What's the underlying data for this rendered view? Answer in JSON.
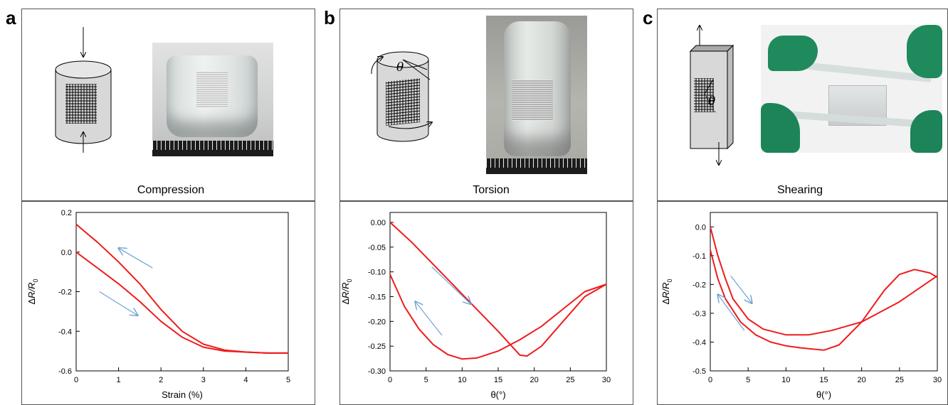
{
  "panels": [
    {
      "letter": "a",
      "caption": "Compression"
    },
    {
      "letter": "b",
      "caption": "Torsion",
      "diagram_symbol": "θ"
    },
    {
      "letter": "c",
      "caption": "Shearing",
      "diagram_symbol": "θ"
    }
  ],
  "colors": {
    "curve": "#ee1c1c",
    "arrow": "#6fa3d3",
    "frame": "#555555"
  },
  "icons": [
    "down-arrow-icon",
    "up-arrow-icon",
    "rotation-arrow-icon",
    "cylinder-sample-icon",
    "slab-sample-icon"
  ],
  "chart_data": [
    {
      "type": "line",
      "xlabel": "Strain (%)",
      "ylabel": "ΔR/R0",
      "xlim": [
        0,
        5
      ],
      "ylim": [
        -0.6,
        0.2
      ],
      "xticks": [
        0,
        1,
        2,
        3,
        4,
        5
      ],
      "yticks": [
        -0.6,
        -0.4,
        -0.2,
        0.0,
        0.2
      ],
      "xtick_labels": [
        "0",
        "1",
        "2",
        "3",
        "4",
        "5"
      ],
      "ytick_labels": [
        "-0.6",
        "-0.4",
        "-0.2",
        "0.0",
        "0.2"
      ],
      "series": [
        {
          "values": [
            [
              0,
              0.0
            ],
            [
              0.5,
              -0.08
            ],
            [
              1,
              -0.16
            ],
            [
              1.5,
              -0.25
            ],
            [
              2,
              -0.35
            ],
            [
              2.5,
              -0.43
            ],
            [
              3,
              -0.48
            ],
            [
              3.5,
              -0.5
            ],
            [
              4,
              -0.505
            ],
            [
              4.5,
              -0.51
            ],
            [
              5,
              -0.51
            ]
          ]
        },
        {
          "values": [
            [
              0,
              0.14
            ],
            [
              0.5,
              0.05
            ],
            [
              1,
              -0.05
            ],
            [
              1.5,
              -0.16
            ],
            [
              2,
              -0.29
            ],
            [
              2.5,
              -0.4
            ],
            [
              3,
              -0.465
            ],
            [
              3.5,
              -0.495
            ],
            [
              4,
              -0.505
            ],
            [
              4.5,
              -0.51
            ],
            [
              5,
              -0.51
            ]
          ]
        }
      ],
      "arrows": [
        {
          "from": [
            1.8,
            -0.08
          ],
          "to": [
            1.0,
            0.02
          ]
        },
        {
          "from": [
            0.55,
            -0.2
          ],
          "to": [
            1.45,
            -0.32
          ]
        }
      ]
    },
    {
      "type": "line",
      "xlabel": "θ(°)",
      "ylabel": "ΔR/R0",
      "xlim": [
        0,
        30
      ],
      "ylim": [
        -0.3,
        0.02
      ],
      "xticks": [
        0,
        5,
        10,
        15,
        20,
        25,
        30
      ],
      "yticks": [
        0.0,
        -0.05,
        -0.1,
        -0.15,
        -0.2,
        -0.25,
        -0.3
      ],
      "xtick_labels": [
        "0",
        "5",
        "10",
        "15",
        "20",
        "25",
        "30"
      ],
      "ytick_labels": [
        "0.00",
        "-0.05",
        "-0.10",
        "-0.15",
        "-0.20",
        "-0.25",
        "-0.30"
      ],
      "series": [
        {
          "values": [
            [
              0,
              0.0
            ],
            [
              3,
              -0.04
            ],
            [
              6,
              -0.085
            ],
            [
              9,
              -0.13
            ],
            [
              12,
              -0.175
            ],
            [
              15,
              -0.22
            ],
            [
              18,
              -0.268
            ],
            [
              19,
              -0.27
            ],
            [
              21,
              -0.25
            ],
            [
              24,
              -0.2
            ],
            [
              27,
              -0.15
            ],
            [
              30,
              -0.125
            ]
          ]
        },
        {
          "values": [
            [
              0,
              -0.105
            ],
            [
              2,
              -0.17
            ],
            [
              4,
              -0.215
            ],
            [
              6,
              -0.247
            ],
            [
              8,
              -0.267
            ],
            [
              10,
              -0.276
            ],
            [
              12,
              -0.274
            ],
            [
              15,
              -0.26
            ],
            [
              18,
              -0.237
            ],
            [
              21,
              -0.21
            ],
            [
              24,
              -0.175
            ],
            [
              27,
              -0.14
            ],
            [
              30,
              -0.125
            ]
          ]
        }
      ],
      "arrows": [
        {
          "from": [
            5.8,
            -0.09
          ],
          "to": [
            11.2,
            -0.165
          ]
        },
        {
          "from": [
            7.2,
            -0.228
          ],
          "to": [
            3.5,
            -0.16
          ]
        }
      ]
    },
    {
      "type": "line",
      "xlabel": "θ(°)",
      "ylabel": "ΔR/R0",
      "xlim": [
        0,
        30
      ],
      "ylim": [
        -0.5,
        0.05
      ],
      "xticks": [
        0,
        5,
        10,
        15,
        20,
        25,
        30
      ],
      "yticks": [
        0.0,
        -0.1,
        -0.2,
        -0.3,
        -0.4,
        -0.5
      ],
      "xtick_labels": [
        "0",
        "5",
        "10",
        "15",
        "20",
        "25",
        "30"
      ],
      "ytick_labels": [
        "0.0",
        "-0.1",
        "-0.2",
        "-0.3",
        "-0.4",
        "-0.5"
      ],
      "series": [
        {
          "values": [
            [
              0,
              0.0
            ],
            [
              1,
              -0.1
            ],
            [
              2,
              -0.18
            ],
            [
              3,
              -0.25
            ],
            [
              5,
              -0.32
            ],
            [
              7,
              -0.355
            ],
            [
              10,
              -0.375
            ],
            [
              13,
              -0.375
            ],
            [
              16,
              -0.36
            ],
            [
              20,
              -0.33
            ],
            [
              25,
              -0.26
            ],
            [
              30,
              -0.17
            ]
          ]
        },
        {
          "values": [
            [
              0,
              -0.08
            ],
            [
              1,
              -0.18
            ],
            [
              2,
              -0.25
            ],
            [
              4,
              -0.33
            ],
            [
              6,
              -0.375
            ],
            [
              8,
              -0.4
            ],
            [
              10,
              -0.413
            ],
            [
              12,
              -0.42
            ],
            [
              15,
              -0.428
            ],
            [
              17,
              -0.41
            ],
            [
              20,
              -0.33
            ],
            [
              23,
              -0.22
            ],
            [
              25,
              -0.165
            ],
            [
              27,
              -0.148
            ],
            [
              29,
              -0.16
            ],
            [
              30,
              -0.175
            ]
          ]
        }
      ],
      "arrows": [
        {
          "from": [
            2.7,
            -0.17
          ],
          "to": [
            5.5,
            -0.265
          ]
        },
        {
          "from": [
            4.5,
            -0.36
          ],
          "to": [
            1.0,
            -0.235
          ]
        }
      ]
    }
  ]
}
